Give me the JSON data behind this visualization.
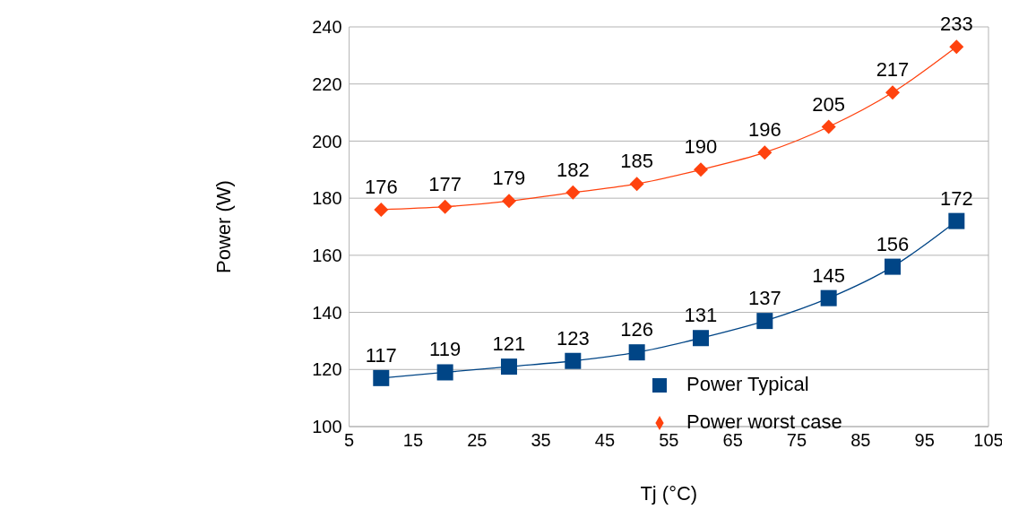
{
  "chart_data": {
    "type": "line",
    "xlabel": "Tj (°C)",
    "ylabel": "Power (W)",
    "x": [
      10,
      20,
      30,
      40,
      50,
      60,
      70,
      80,
      90,
      100
    ],
    "series": [
      {
        "name": "Power Typical",
        "color": "#004586",
        "marker": "square",
        "values": [
          117,
          119,
          121,
          123,
          126,
          131,
          137,
          145,
          156,
          172
        ]
      },
      {
        "name": "Power worst case",
        "color": "#ff420e",
        "marker": "diamond",
        "values": [
          176,
          177,
          179,
          182,
          185,
          190,
          196,
          205,
          217,
          233
        ]
      }
    ],
    "xlim": [
      5,
      105
    ],
    "xticks": [
      5,
      15,
      25,
      35,
      45,
      55,
      65,
      75,
      85,
      95,
      105
    ],
    "ylim": [
      100,
      240
    ],
    "yticks": [
      100,
      120,
      140,
      160,
      180,
      200,
      220,
      240
    ],
    "grid": "y",
    "legend": "bottom right",
    "data_labels": true,
    "line_style": "solid"
  }
}
